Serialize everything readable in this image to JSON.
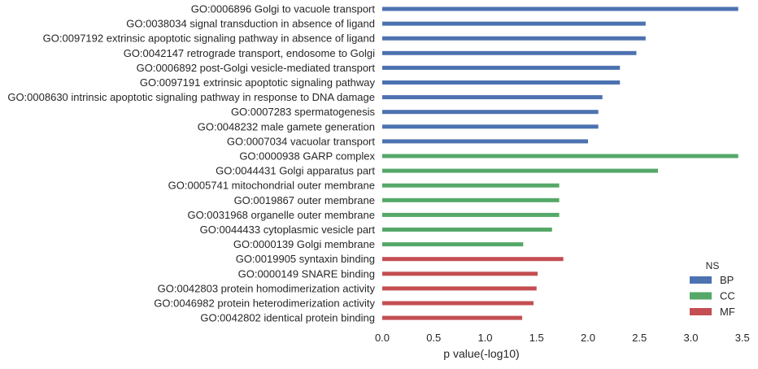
{
  "chart_data": {
    "type": "bar",
    "orientation": "horizontal",
    "xlabel": "p value(-log10)",
    "ylabel": "",
    "xlim": [
      0.0,
      3.5
    ],
    "xticks": [
      "0.0",
      "0.5",
      "1.0",
      "1.5",
      "2.0",
      "2.5",
      "3.0",
      "3.5"
    ],
    "xtick_values": [
      0.0,
      0.5,
      1.0,
      1.5,
      2.0,
      2.5,
      3.0,
      3.5
    ],
    "grid": false,
    "legend": {
      "title": "NS",
      "position": "bottom-right",
      "entries": [
        {
          "name": "BP",
          "color": "#4c72b0"
        },
        {
          "name": "CC",
          "color": "#55a868"
        },
        {
          "name": "MF",
          "color": "#c44e52"
        }
      ]
    },
    "categories": [
      {
        "label": "GO:0006896 Golgi to vacuole transport",
        "value": 3.46,
        "ns": "BP"
      },
      {
        "label": "GO:0038034 signal transduction in absence of ligand",
        "value": 2.56,
        "ns": "BP"
      },
      {
        "label": "GO:0097192 extrinsic apoptotic signaling pathway in absence of ligand",
        "value": 2.56,
        "ns": "BP"
      },
      {
        "label": "GO:0042147 retrograde transport, endosome to Golgi",
        "value": 2.47,
        "ns": "BP"
      },
      {
        "label": "GO:0006892 post-Golgi vesicle-mediated transport",
        "value": 2.31,
        "ns": "BP"
      },
      {
        "label": "GO:0097191 extrinsic apoptotic signaling pathway",
        "value": 2.31,
        "ns": "BP"
      },
      {
        "label": "GO:0008630 intrinsic apoptotic signaling pathway in response to DNA damage",
        "value": 2.14,
        "ns": "BP"
      },
      {
        "label": "GO:0007283 spermatogenesis",
        "value": 2.1,
        "ns": "BP"
      },
      {
        "label": "GO:0048232 male gamete generation",
        "value": 2.1,
        "ns": "BP"
      },
      {
        "label": "GO:0007034 vacuolar transport",
        "value": 2.0,
        "ns": "BP"
      },
      {
        "label": "GO:0000938 GARP complex",
        "value": 3.46,
        "ns": "CC"
      },
      {
        "label": "GO:0044431 Golgi apparatus part",
        "value": 2.68,
        "ns": "CC"
      },
      {
        "label": "GO:0005741 mitochondrial outer membrane",
        "value": 1.72,
        "ns": "CC"
      },
      {
        "label": "GO:0019867 outer membrane",
        "value": 1.72,
        "ns": "CC"
      },
      {
        "label": "GO:0031968 organelle outer membrane",
        "value": 1.72,
        "ns": "CC"
      },
      {
        "label": "GO:0044433 cytoplasmic vesicle part",
        "value": 1.65,
        "ns": "CC"
      },
      {
        "label": "GO:0000139 Golgi membrane",
        "value": 1.37,
        "ns": "CC"
      },
      {
        "label": "GO:0019905 syntaxin binding",
        "value": 1.76,
        "ns": "MF"
      },
      {
        "label": "GO:0000149 SNARE binding",
        "value": 1.51,
        "ns": "MF"
      },
      {
        "label": "GO:0042803 protein homodimerization activity",
        "value": 1.5,
        "ns": "MF"
      },
      {
        "label": "GO:0046982 protein heterodimerization activity",
        "value": 1.47,
        "ns": "MF"
      },
      {
        "label": "GO:0042802 identical protein binding",
        "value": 1.36,
        "ns": "MF"
      }
    ]
  }
}
